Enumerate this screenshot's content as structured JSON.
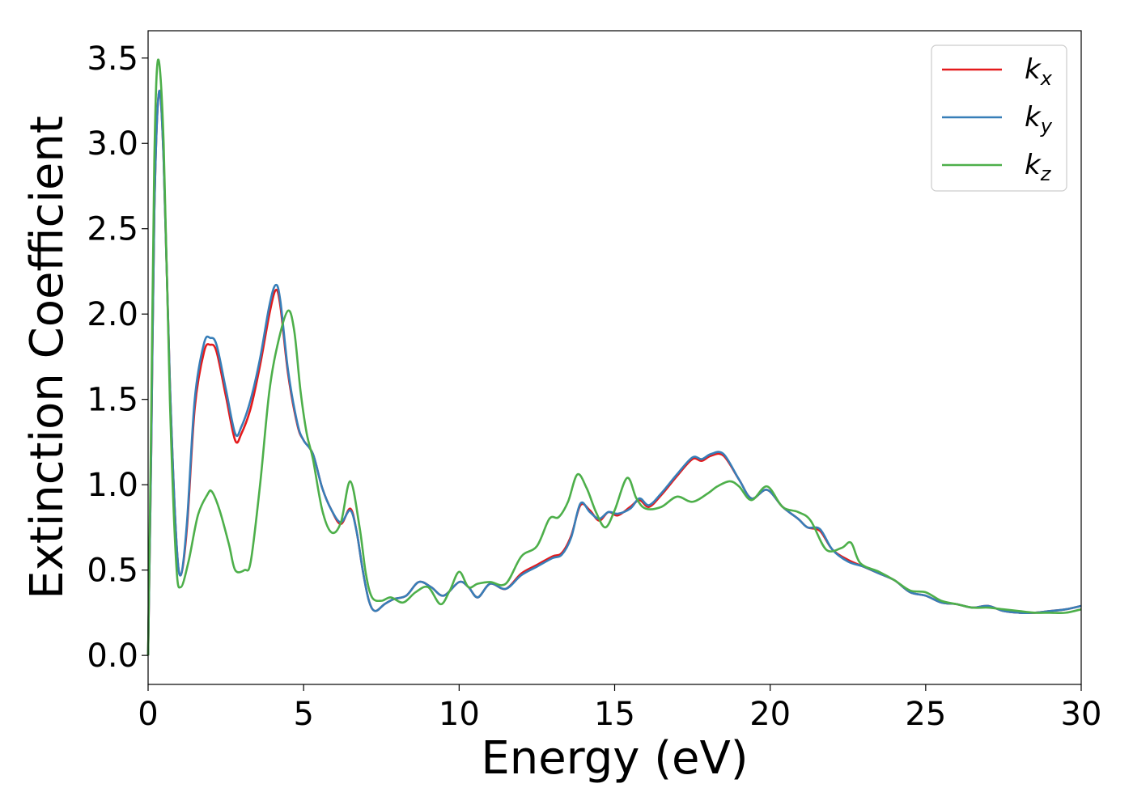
{
  "chart_data": {
    "type": "line",
    "title": "",
    "xlabel": "Energy (eV)",
    "ylabel": "Extinction Coefficient",
    "xlim": [
      0,
      30
    ],
    "ylim": [
      -0.17,
      3.66
    ],
    "xticks": [
      0,
      5,
      10,
      15,
      20,
      25,
      30
    ],
    "xtick_labels": [
      "0",
      "5",
      "10",
      "15",
      "20",
      "25",
      "30"
    ],
    "yticks": [
      0.0,
      0.5,
      1.0,
      1.5,
      2.0,
      2.5,
      3.0,
      3.5
    ],
    "ytick_labels": [
      "0.0",
      "0.5",
      "1.0",
      "1.5",
      "2.0",
      "2.5",
      "3.0",
      "3.5"
    ],
    "grid": false,
    "legend_position": "top-right",
    "series": [
      {
        "name": "k",
        "subscript": "x",
        "color": "#e41a1c",
        "points": [
          [
            0,
            0.0
          ],
          [
            0.1,
            1.2
          ],
          [
            0.2,
            2.6
          ],
          [
            0.35,
            3.3
          ],
          [
            0.5,
            2.9
          ],
          [
            0.7,
            1.6
          ],
          [
            0.9,
            0.7
          ],
          [
            1.05,
            0.47
          ],
          [
            1.25,
            0.75
          ],
          [
            1.5,
            1.45
          ],
          [
            1.8,
            1.78
          ],
          [
            2.0,
            1.82
          ],
          [
            2.2,
            1.78
          ],
          [
            2.5,
            1.52
          ],
          [
            2.8,
            1.26
          ],
          [
            3.0,
            1.3
          ],
          [
            3.3,
            1.45
          ],
          [
            3.6,
            1.7
          ],
          [
            3.9,
            2.0
          ],
          [
            4.1,
            2.14
          ],
          [
            4.25,
            2.05
          ],
          [
            4.5,
            1.65
          ],
          [
            4.8,
            1.35
          ],
          [
            5.0,
            1.26
          ],
          [
            5.3,
            1.18
          ],
          [
            5.6,
            0.98
          ],
          [
            5.9,
            0.85
          ],
          [
            6.2,
            0.77
          ],
          [
            6.5,
            0.86
          ],
          [
            6.7,
            0.73
          ],
          [
            6.9,
            0.5
          ],
          [
            7.1,
            0.32
          ],
          [
            7.3,
            0.26
          ],
          [
            7.6,
            0.3
          ],
          [
            7.9,
            0.33
          ],
          [
            8.3,
            0.35
          ],
          [
            8.7,
            0.43
          ],
          [
            9.1,
            0.4
          ],
          [
            9.5,
            0.35
          ],
          [
            10.0,
            0.43
          ],
          [
            10.3,
            0.4
          ],
          [
            10.6,
            0.34
          ],
          [
            11.0,
            0.42
          ],
          [
            11.5,
            0.39
          ],
          [
            12.0,
            0.48
          ],
          [
            12.5,
            0.53
          ],
          [
            13.0,
            0.58
          ],
          [
            13.3,
            0.6
          ],
          [
            13.6,
            0.7
          ],
          [
            13.9,
            0.88
          ],
          [
            14.2,
            0.85
          ],
          [
            14.5,
            0.79
          ],
          [
            14.8,
            0.84
          ],
          [
            15.1,
            0.82
          ],
          [
            15.5,
            0.87
          ],
          [
            15.8,
            0.91
          ],
          [
            16.1,
            0.87
          ],
          [
            16.5,
            0.94
          ],
          [
            17.0,
            1.05
          ],
          [
            17.5,
            1.15
          ],
          [
            17.8,
            1.14
          ],
          [
            18.1,
            1.17
          ],
          [
            18.5,
            1.17
          ],
          [
            19.0,
            1.03
          ],
          [
            19.4,
            0.92
          ],
          [
            19.9,
            0.97
          ],
          [
            20.4,
            0.87
          ],
          [
            20.9,
            0.8
          ],
          [
            21.2,
            0.75
          ],
          [
            21.6,
            0.73
          ],
          [
            22.0,
            0.62
          ],
          [
            22.5,
            0.56
          ],
          [
            23.0,
            0.52
          ],
          [
            23.5,
            0.48
          ],
          [
            24.0,
            0.44
          ],
          [
            24.5,
            0.37
          ],
          [
            25.0,
            0.35
          ],
          [
            25.5,
            0.31
          ],
          [
            26.0,
            0.3
          ],
          [
            26.5,
            0.28
          ],
          [
            27.0,
            0.29
          ],
          [
            27.5,
            0.26
          ],
          [
            28.0,
            0.25
          ],
          [
            28.5,
            0.25
          ],
          [
            29.0,
            0.26
          ],
          [
            29.5,
            0.27
          ],
          [
            30.0,
            0.29
          ]
        ]
      },
      {
        "name": "k",
        "subscript": "y",
        "color": "#377eb8",
        "points": [
          [
            0,
            0.0
          ],
          [
            0.1,
            1.2
          ],
          [
            0.2,
            2.6
          ],
          [
            0.35,
            3.3
          ],
          [
            0.5,
            2.9
          ],
          [
            0.7,
            1.6
          ],
          [
            0.9,
            0.7
          ],
          [
            1.05,
            0.47
          ],
          [
            1.25,
            0.78
          ],
          [
            1.5,
            1.5
          ],
          [
            1.8,
            1.83
          ],
          [
            2.0,
            1.86
          ],
          [
            2.2,
            1.82
          ],
          [
            2.5,
            1.56
          ],
          [
            2.8,
            1.3
          ],
          [
            3.0,
            1.34
          ],
          [
            3.3,
            1.5
          ],
          [
            3.6,
            1.74
          ],
          [
            3.9,
            2.05
          ],
          [
            4.1,
            2.17
          ],
          [
            4.25,
            2.08
          ],
          [
            4.5,
            1.67
          ],
          [
            4.8,
            1.36
          ],
          [
            5.0,
            1.26
          ],
          [
            5.3,
            1.18
          ],
          [
            5.6,
            0.98
          ],
          [
            5.9,
            0.85
          ],
          [
            6.2,
            0.78
          ],
          [
            6.5,
            0.85
          ],
          [
            6.7,
            0.73
          ],
          [
            6.9,
            0.5
          ],
          [
            7.1,
            0.32
          ],
          [
            7.3,
            0.26
          ],
          [
            7.6,
            0.3
          ],
          [
            7.9,
            0.33
          ],
          [
            8.3,
            0.35
          ],
          [
            8.7,
            0.43
          ],
          [
            9.1,
            0.4
          ],
          [
            9.5,
            0.35
          ],
          [
            10.0,
            0.43
          ],
          [
            10.3,
            0.4
          ],
          [
            10.6,
            0.34
          ],
          [
            11.0,
            0.42
          ],
          [
            11.5,
            0.39
          ],
          [
            12.0,
            0.47
          ],
          [
            12.5,
            0.52
          ],
          [
            13.0,
            0.57
          ],
          [
            13.3,
            0.59
          ],
          [
            13.6,
            0.69
          ],
          [
            13.9,
            0.89
          ],
          [
            14.2,
            0.84
          ],
          [
            14.5,
            0.8
          ],
          [
            14.8,
            0.84
          ],
          [
            15.1,
            0.83
          ],
          [
            15.5,
            0.86
          ],
          [
            15.8,
            0.92
          ],
          [
            16.1,
            0.88
          ],
          [
            16.5,
            0.95
          ],
          [
            17.0,
            1.06
          ],
          [
            17.5,
            1.16
          ],
          [
            17.8,
            1.15
          ],
          [
            18.1,
            1.18
          ],
          [
            18.5,
            1.18
          ],
          [
            19.0,
            1.03
          ],
          [
            19.4,
            0.92
          ],
          [
            19.9,
            0.97
          ],
          [
            20.4,
            0.87
          ],
          [
            20.9,
            0.8
          ],
          [
            21.2,
            0.75
          ],
          [
            21.6,
            0.74
          ],
          [
            22.0,
            0.62
          ],
          [
            22.5,
            0.55
          ],
          [
            23.0,
            0.52
          ],
          [
            23.5,
            0.48
          ],
          [
            24.0,
            0.44
          ],
          [
            24.5,
            0.37
          ],
          [
            25.0,
            0.35
          ],
          [
            25.5,
            0.31
          ],
          [
            26.0,
            0.3
          ],
          [
            26.5,
            0.28
          ],
          [
            27.0,
            0.29
          ],
          [
            27.5,
            0.26
          ],
          [
            28.0,
            0.25
          ],
          [
            28.5,
            0.25
          ],
          [
            29.0,
            0.26
          ],
          [
            29.5,
            0.27
          ],
          [
            30.0,
            0.29
          ]
        ]
      },
      {
        "name": "k",
        "subscript": "z",
        "color": "#4daf4a",
        "points": [
          [
            0,
            0.0
          ],
          [
            0.1,
            1.4
          ],
          [
            0.2,
            2.9
          ],
          [
            0.32,
            3.49
          ],
          [
            0.5,
            3.0
          ],
          [
            0.7,
            1.5
          ],
          [
            0.9,
            0.55
          ],
          [
            1.05,
            0.4
          ],
          [
            1.3,
            0.55
          ],
          [
            1.6,
            0.82
          ],
          [
            1.9,
            0.94
          ],
          [
            2.05,
            0.96
          ],
          [
            2.3,
            0.85
          ],
          [
            2.6,
            0.65
          ],
          [
            2.8,
            0.5
          ],
          [
            3.1,
            0.5
          ],
          [
            3.3,
            0.55
          ],
          [
            3.6,
            1.0
          ],
          [
            3.9,
            1.55
          ],
          [
            4.2,
            1.85
          ],
          [
            4.5,
            2.02
          ],
          [
            4.7,
            1.9
          ],
          [
            4.9,
            1.55
          ],
          [
            5.1,
            1.3
          ],
          [
            5.3,
            1.15
          ],
          [
            5.6,
            0.85
          ],
          [
            5.9,
            0.72
          ],
          [
            6.2,
            0.78
          ],
          [
            6.5,
            1.02
          ],
          [
            6.8,
            0.75
          ],
          [
            7.0,
            0.48
          ],
          [
            7.2,
            0.34
          ],
          [
            7.5,
            0.32
          ],
          [
            7.8,
            0.34
          ],
          [
            8.2,
            0.31
          ],
          [
            8.6,
            0.37
          ],
          [
            9.0,
            0.4
          ],
          [
            9.4,
            0.3
          ],
          [
            9.7,
            0.38
          ],
          [
            10.0,
            0.49
          ],
          [
            10.3,
            0.4
          ],
          [
            10.6,
            0.42
          ],
          [
            11.0,
            0.43
          ],
          [
            11.5,
            0.42
          ],
          [
            12.0,
            0.58
          ],
          [
            12.5,
            0.64
          ],
          [
            12.9,
            0.8
          ],
          [
            13.2,
            0.81
          ],
          [
            13.5,
            0.9
          ],
          [
            13.8,
            1.06
          ],
          [
            14.1,
            0.98
          ],
          [
            14.4,
            0.84
          ],
          [
            14.7,
            0.75
          ],
          [
            15.0,
            0.85
          ],
          [
            15.4,
            1.04
          ],
          [
            15.7,
            0.92
          ],
          [
            16.0,
            0.86
          ],
          [
            16.5,
            0.87
          ],
          [
            17.0,
            0.93
          ],
          [
            17.5,
            0.9
          ],
          [
            18.0,
            0.95
          ],
          [
            18.3,
            0.99
          ],
          [
            18.7,
            1.02
          ],
          [
            19.0,
            0.99
          ],
          [
            19.4,
            0.91
          ],
          [
            19.9,
            0.99
          ],
          [
            20.4,
            0.87
          ],
          [
            20.9,
            0.84
          ],
          [
            21.3,
            0.79
          ],
          [
            21.8,
            0.62
          ],
          [
            22.3,
            0.63
          ],
          [
            22.6,
            0.66
          ],
          [
            22.9,
            0.54
          ],
          [
            23.5,
            0.49
          ],
          [
            24.0,
            0.44
          ],
          [
            24.5,
            0.38
          ],
          [
            25.0,
            0.37
          ],
          [
            25.5,
            0.32
          ],
          [
            26.0,
            0.3
          ],
          [
            26.5,
            0.28
          ],
          [
            27.0,
            0.28
          ],
          [
            27.5,
            0.27
          ],
          [
            28.0,
            0.26
          ],
          [
            28.5,
            0.25
          ],
          [
            29.0,
            0.25
          ],
          [
            29.5,
            0.25
          ],
          [
            30.0,
            0.27
          ]
        ]
      }
    ]
  }
}
